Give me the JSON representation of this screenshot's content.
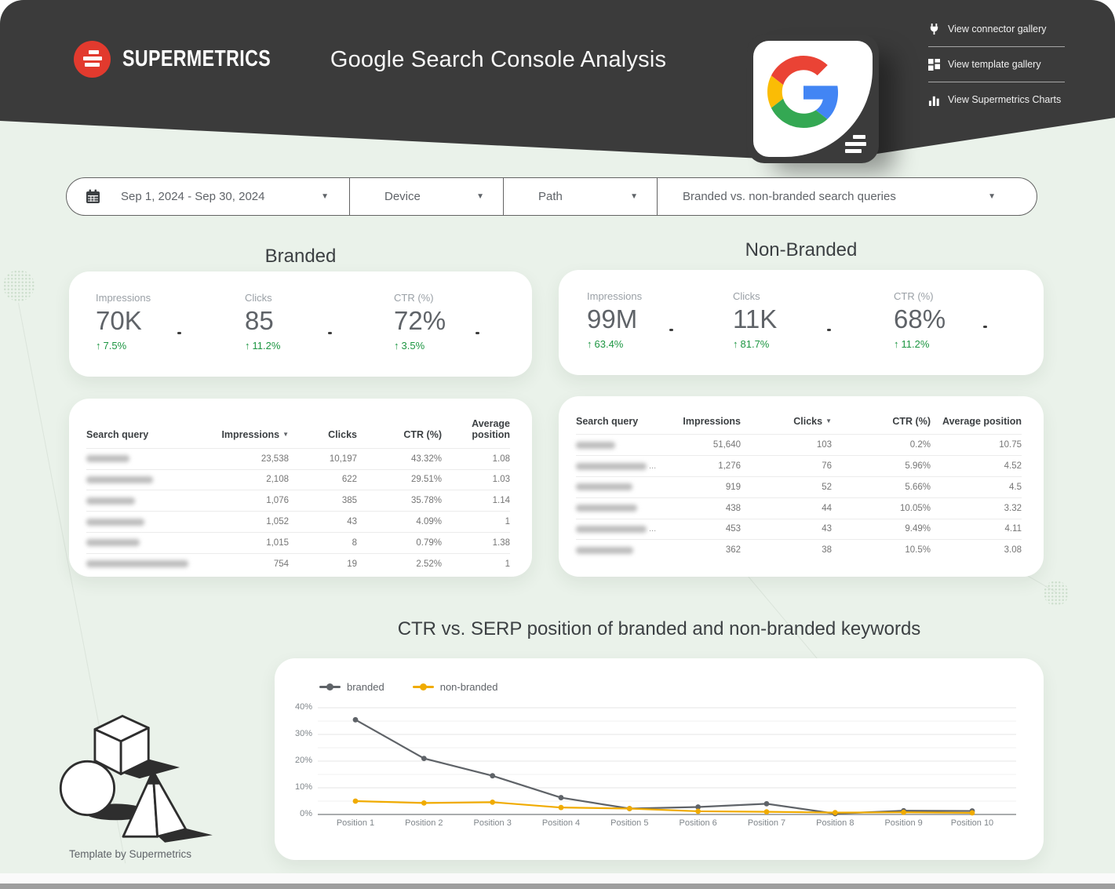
{
  "colors": {
    "header_bg": "#3b3b3b",
    "page_bg": "#eaf2ea",
    "brand_red": "#e23a2e",
    "positive_green": "#1d9642",
    "series_branded": "#5f6368",
    "series_non_branded": "#f0ab00"
  },
  "header": {
    "brand": "SUPERMETRICS",
    "title": "Google Search Console Analysis",
    "menu": [
      {
        "icon": "plug-icon",
        "label": "View connector gallery"
      },
      {
        "icon": "template-gallery-icon",
        "label": "View template gallery"
      },
      {
        "icon": "bar-chart-icon",
        "label": "View Supermetrics Charts"
      }
    ]
  },
  "filter_bar": {
    "date_range": "Sep 1, 2024 - Sep 30, 2024",
    "device_label": "Device",
    "path_label": "Path",
    "query_filter_label": "Branded vs. non-branded search queries"
  },
  "branded": {
    "section_title": "Branded",
    "scorecards": [
      {
        "label": "Impressions",
        "value": "70K",
        "delta": "7.5%",
        "direction": "up"
      },
      {
        "label": "Clicks",
        "value": "85",
        "delta": "11.2%",
        "direction": "up"
      },
      {
        "label": "CTR (%)",
        "value": "72%",
        "delta": "3.5%",
        "direction": "up"
      }
    ],
    "table": {
      "headers": [
        "Search query",
        "Impressions",
        "Clicks",
        "CTR (%)",
        "Average position"
      ],
      "sorted_column": 1,
      "sort_direction": "desc",
      "rows": [
        {
          "query": "[redacted]",
          "blur_width": 55,
          "truncated": false,
          "values": [
            "23,538",
            "10,197",
            "43.32%",
            "1.08"
          ]
        },
        {
          "query": "[redacted]",
          "blur_width": 85,
          "truncated": false,
          "values": [
            "2,108",
            "622",
            "29.51%",
            "1.03"
          ]
        },
        {
          "query": "[redacted]",
          "blur_width": 62,
          "truncated": false,
          "values": [
            "1,076",
            "385",
            "35.78%",
            "1.14"
          ]
        },
        {
          "query": "[redacted]",
          "blur_width": 74,
          "truncated": false,
          "values": [
            "1,052",
            "43",
            "4.09%",
            "1"
          ]
        },
        {
          "query": "[redacted]",
          "blur_width": 68,
          "truncated": false,
          "values": [
            "1,015",
            "8",
            "0.79%",
            "1.38"
          ]
        },
        {
          "query": "[redacted]",
          "blur_width": 130,
          "truncated": false,
          "values": [
            "754",
            "19",
            "2.52%",
            "1"
          ]
        }
      ]
    }
  },
  "non_branded": {
    "section_title": "Non-Branded",
    "scorecards": [
      {
        "label": "Impressions",
        "value": "99M",
        "delta": "63.4%",
        "direction": "up"
      },
      {
        "label": "Clicks",
        "value": "11K",
        "delta": "81.7%",
        "direction": "up"
      },
      {
        "label": "CTR (%)",
        "value": "68%",
        "delta": "11.2%",
        "direction": "up"
      }
    ],
    "table": {
      "headers": [
        "Search query",
        "Impressions",
        "Clicks",
        "CTR (%)",
        "Average position"
      ],
      "sorted_column": 2,
      "sort_direction": "desc",
      "rows": [
        {
          "query": "[redacted]",
          "blur_width": 50,
          "truncated": false,
          "values": [
            "51,640",
            "103",
            "0.2%",
            "10.75"
          ]
        },
        {
          "query": "[redacted]",
          "blur_width": 90,
          "truncated": true,
          "values": [
            "1,276",
            "76",
            "5.96%",
            "4.52"
          ]
        },
        {
          "query": "[redacted]",
          "blur_width": 72,
          "truncated": false,
          "values": [
            "919",
            "52",
            "5.66%",
            "4.5"
          ]
        },
        {
          "query": "[redacted]",
          "blur_width": 78,
          "truncated": false,
          "values": [
            "438",
            "44",
            "10.05%",
            "3.32"
          ]
        },
        {
          "query": "[redacted]",
          "blur_width": 90,
          "truncated": true,
          "values": [
            "453",
            "43",
            "9.49%",
            "4.11"
          ]
        },
        {
          "query": "[redacted]",
          "blur_width": 73,
          "truncated": false,
          "values": [
            "362",
            "38",
            "10.5%",
            "3.08"
          ]
        }
      ]
    }
  },
  "chart_data": {
    "type": "line",
    "title": "CTR vs. SERP position of branded and non-branded keywords",
    "categories": [
      "Position 1",
      "Position 2",
      "Position 3",
      "Position 4",
      "Position 5",
      "Position 6",
      "Position 7",
      "Position 8",
      "Position 9",
      "Position 10"
    ],
    "series": [
      {
        "name": "branded",
        "color": "#5f6368",
        "values": [
          35.5,
          21,
          14.5,
          6.3,
          2.2,
          2.8,
          4,
          0.3,
          1.4,
          1.3
        ]
      },
      {
        "name": "non-branded",
        "color": "#f0ab00",
        "values": [
          5,
          4.3,
          4.6,
          2.6,
          2.2,
          1.2,
          1,
          0.7,
          0.8,
          0.6
        ]
      }
    ],
    "ylabel": "",
    "xlabel": "",
    "ylim": [
      0,
      40
    ],
    "ytick_labels": [
      "0%",
      "10%",
      "20%",
      "30%",
      "40%"
    ],
    "minor_grid_step": 5,
    "grid": true,
    "legend_position": "top-left"
  },
  "footer": {
    "credit": "Template by Supermetrics"
  }
}
